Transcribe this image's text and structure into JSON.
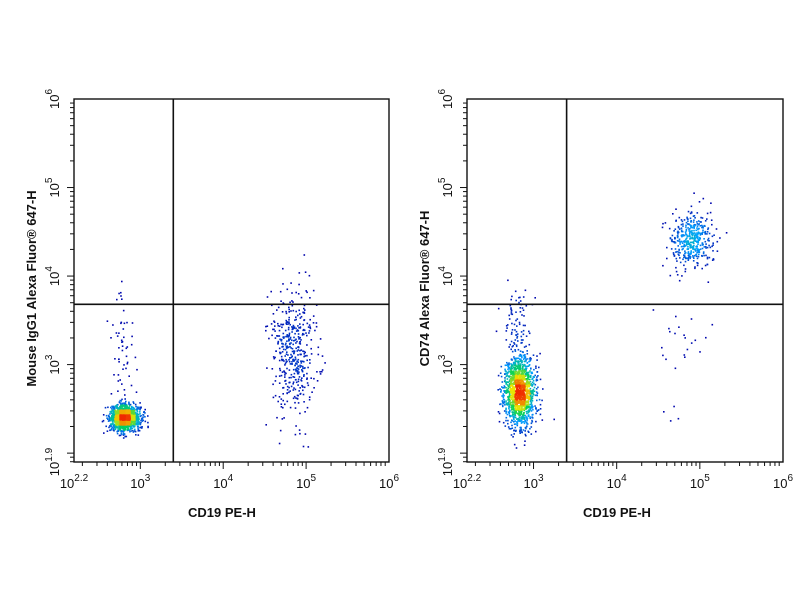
{
  "chart_data": [
    {
      "type": "scatter",
      "style": "density-dot-plot",
      "title": "",
      "xlabel": "CD19 PE-H",
      "ylabel": "Mouse IgG1 Alexa Fluor® 647-H",
      "x_scale": "log",
      "y_scale": "log",
      "xlim": [
        158.5,
        1000000
      ],
      "ylim": [
        79.4,
        1000000
      ],
      "x_ticks": [
        {
          "value": 158.5,
          "base": "10",
          "exp": "2.2"
        },
        {
          "value": 1000,
          "base": "10",
          "exp": "3"
        },
        {
          "value": 10000,
          "base": "10",
          "exp": "4"
        },
        {
          "value": 100000,
          "base": "10",
          "exp": "5"
        },
        {
          "value": 1000000,
          "base": "10",
          "exp": "6"
        }
      ],
      "y_ticks": [
        {
          "value": 79.4,
          "base": "10",
          "exp": "1.9"
        },
        {
          "value": 1000,
          "base": "10",
          "exp": "3"
        },
        {
          "value": 10000,
          "base": "10",
          "exp": "4"
        },
        {
          "value": 100000,
          "base": "10",
          "exp": "5"
        },
        {
          "value": 1000000,
          "base": "10",
          "exp": "6"
        }
      ],
      "gates": {
        "x": 2500,
        "y": 4800
      },
      "populations": [
        {
          "cx": 650,
          "cy": 250,
          "sx": 0.09,
          "sy": 0.07,
          "n": 1400
        },
        {
          "cx": 620,
          "cy": 900,
          "sx": 0.08,
          "sy": 0.45,
          "n": 70
        },
        {
          "cx": 70000,
          "cy": 1500,
          "sx": 0.14,
          "sy": 0.35,
          "n": 450
        }
      ],
      "seed": 7
    },
    {
      "type": "scatter",
      "style": "density-dot-plot",
      "title": "",
      "xlabel": "CD19 PE-H",
      "ylabel": "CD74 Alexa Fluor® 647-H",
      "x_scale": "log",
      "y_scale": "log",
      "xlim": [
        158.5,
        1000000
      ],
      "ylim": [
        79.4,
        1000000
      ],
      "x_ticks": [
        {
          "value": 158.5,
          "base": "10",
          "exp": "2.2"
        },
        {
          "value": 1000,
          "base": "10",
          "exp": "3"
        },
        {
          "value": 10000,
          "base": "10",
          "exp": "4"
        },
        {
          "value": 100000,
          "base": "10",
          "exp": "5"
        },
        {
          "value": 1000000,
          "base": "10",
          "exp": "6"
        }
      ],
      "y_ticks": [
        {
          "value": 79.4,
          "base": "10",
          "exp": "1.9"
        },
        {
          "value": 1000,
          "base": "10",
          "exp": "3"
        },
        {
          "value": 10000,
          "base": "10",
          "exp": "4"
        },
        {
          "value": 100000,
          "base": "10",
          "exp": "5"
        },
        {
          "value": 1000000,
          "base": "10",
          "exp": "6"
        }
      ],
      "gates": {
        "x": 2500,
        "y": 4800
      },
      "populations": [
        {
          "cx": 680,
          "cy": 500,
          "sx": 0.09,
          "sy": 0.2,
          "n": 1500
        },
        {
          "cx": 640,
          "cy": 2800,
          "sx": 0.08,
          "sy": 0.2,
          "n": 80
        },
        {
          "cx": 80000,
          "cy": 25000,
          "sx": 0.13,
          "sy": 0.16,
          "n": 420
        },
        {
          "cx": 60000,
          "cy": 1500,
          "sx": 0.15,
          "sy": 0.3,
          "n": 25
        }
      ],
      "seed": 11
    }
  ]
}
